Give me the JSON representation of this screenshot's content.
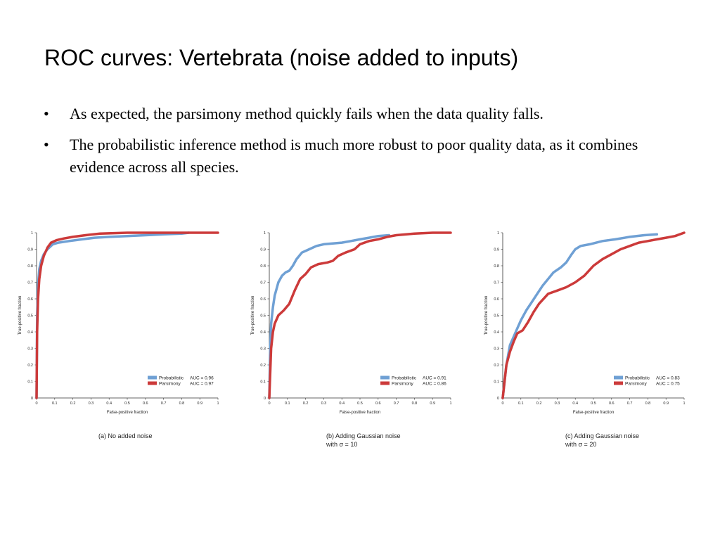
{
  "slide": {
    "title": "ROC curves: Vertebrata (noise added to inputs)",
    "bullets": [
      "As expected, the parsimony method quickly fails when the data quality falls.",
      "The probabilistic inference method is much more robust to poor quality data, as it combines evidence across all species."
    ],
    "bullet_mark": "•"
  },
  "colors": {
    "probabilistic": "#6fa0d4",
    "parsimony": "#cc3a3a"
  },
  "chart_data": [
    {
      "type": "line",
      "caption": "(a) No added noise",
      "xlabel": "False-positive fraction",
      "ylabel": "True-positive fraction",
      "xlim": [
        0,
        1
      ],
      "ylim": [
        0,
        1
      ],
      "xticks": [
        "0",
        "0.1",
        "0.2",
        "0.3",
        "0.4",
        "0.5",
        "0.6",
        "0.7",
        "0.8",
        "0.9",
        "1"
      ],
      "yticks": [
        "0",
        "0.1",
        "0.2",
        "0.3",
        "0.4",
        "0.5",
        "0.6",
        "0.7",
        "0.8",
        "0.9",
        "1"
      ],
      "grid": false,
      "legend_position": "bottom-right",
      "series": [
        {
          "name": "Probabilistic",
          "auc_label": "AUC = 0.96",
          "color": "#6fa0d4",
          "x": [
            0,
            0.003,
            0.008,
            0.015,
            0.025,
            0.04,
            0.06,
            0.09,
            0.12,
            0.18,
            0.25,
            0.32,
            0.4,
            0.5,
            0.6,
            0.7,
            0.8,
            0.84
          ],
          "y": [
            0,
            0.5,
            0.68,
            0.78,
            0.83,
            0.87,
            0.9,
            0.93,
            0.94,
            0.95,
            0.96,
            0.97,
            0.975,
            0.98,
            0.985,
            0.99,
            0.995,
            1.0
          ]
        },
        {
          "name": "Parsimony",
          "auc_label": "AUC = 0.97",
          "color": "#cc3a3a",
          "x": [
            0,
            0.003,
            0.008,
            0.015,
            0.025,
            0.04,
            0.06,
            0.08,
            0.11,
            0.15,
            0.2,
            0.27,
            0.35,
            0.5,
            0.7,
            0.85,
            1.0
          ],
          "y": [
            0,
            0.4,
            0.6,
            0.72,
            0.8,
            0.86,
            0.91,
            0.94,
            0.955,
            0.965,
            0.975,
            0.985,
            0.995,
            1.0,
            1.0,
            1.0,
            1.0
          ]
        }
      ]
    },
    {
      "type": "line",
      "caption": "(b) Adding Gaussian noise\nwith σ = 10",
      "xlabel": "False-positive fraction",
      "ylabel": "True-positive fraction",
      "xlim": [
        0,
        1
      ],
      "ylim": [
        0,
        1
      ],
      "xticks": [
        "0",
        "0.1",
        "0.2",
        "0.3",
        "0.4",
        "0.5",
        "0.6",
        "0.7",
        "0.8",
        "0.9",
        "1"
      ],
      "yticks": [
        "0",
        "0.1",
        "0.2",
        "0.3",
        "0.4",
        "0.5",
        "0.6",
        "0.7",
        "0.8",
        "0.9",
        "1"
      ],
      "grid": false,
      "legend_position": "bottom-right",
      "series": [
        {
          "name": "Probabilistic",
          "auc_label": "AUC = 0.91",
          "color": "#6fa0d4",
          "x": [
            0,
            0.005,
            0.01,
            0.02,
            0.03,
            0.05,
            0.07,
            0.09,
            0.11,
            0.13,
            0.15,
            0.18,
            0.22,
            0.26,
            0.3,
            0.35,
            0.4,
            0.45,
            0.5,
            0.55,
            0.6,
            0.66
          ],
          "y": [
            0,
            0.3,
            0.45,
            0.55,
            0.62,
            0.7,
            0.74,
            0.76,
            0.77,
            0.8,
            0.84,
            0.88,
            0.9,
            0.92,
            0.93,
            0.935,
            0.94,
            0.95,
            0.96,
            0.97,
            0.98,
            0.985
          ]
        },
        {
          "name": "Parsimony",
          "auc_label": "AUC = 0.86",
          "color": "#cc3a3a",
          "x": [
            0,
            0.005,
            0.01,
            0.02,
            0.03,
            0.05,
            0.08,
            0.11,
            0.14,
            0.17,
            0.2,
            0.23,
            0.27,
            0.32,
            0.35,
            0.38,
            0.42,
            0.47,
            0.5,
            0.55,
            0.6,
            0.65,
            0.7,
            0.8,
            0.9,
            1.0
          ],
          "y": [
            0,
            0.15,
            0.3,
            0.4,
            0.45,
            0.5,
            0.53,
            0.57,
            0.65,
            0.72,
            0.75,
            0.79,
            0.81,
            0.82,
            0.83,
            0.86,
            0.88,
            0.9,
            0.93,
            0.95,
            0.96,
            0.975,
            0.985,
            0.995,
            1.0,
            1.0
          ]
        }
      ]
    },
    {
      "type": "line",
      "caption": "(c) Adding Gaussian noise\nwith σ = 20",
      "xlabel": "False-positive fraction",
      "ylabel": "True-positive fraction",
      "xlim": [
        0,
        1
      ],
      "ylim": [
        0,
        1
      ],
      "xticks": [
        "0",
        "0.1",
        "0.2",
        "0.3",
        "0.4",
        "0.5",
        "0.6",
        "0.7",
        "0.8",
        "0.9",
        "1"
      ],
      "yticks": [
        "0",
        "0.1",
        "0.2",
        "0.3",
        "0.4",
        "0.5",
        "0.6",
        "0.7",
        "0.8",
        "0.9",
        "1"
      ],
      "grid": false,
      "legend_position": "bottom-right",
      "series": [
        {
          "name": "Probabilistic",
          "auc_label": "AUC = 0.83",
          "color": "#6fa0d4",
          "x": [
            0,
            0.01,
            0.02,
            0.04,
            0.06,
            0.08,
            0.1,
            0.13,
            0.16,
            0.19,
            0.22,
            0.25,
            0.28,
            0.32,
            0.35,
            0.38,
            0.4,
            0.43,
            0.48,
            0.55,
            0.62,
            0.7,
            0.78,
            0.85
          ],
          "y": [
            0,
            0.1,
            0.2,
            0.32,
            0.37,
            0.42,
            0.47,
            0.53,
            0.58,
            0.63,
            0.68,
            0.72,
            0.76,
            0.79,
            0.82,
            0.87,
            0.9,
            0.92,
            0.93,
            0.95,
            0.96,
            0.975,
            0.985,
            0.99
          ]
        },
        {
          "name": "Parsimony",
          "auc_label": "AUC = 0.75",
          "color": "#cc3a3a",
          "x": [
            0,
            0.01,
            0.02,
            0.04,
            0.06,
            0.08,
            0.11,
            0.14,
            0.17,
            0.2,
            0.25,
            0.3,
            0.35,
            0.4,
            0.45,
            0.5,
            0.55,
            0.6,
            0.65,
            0.7,
            0.75,
            0.8,
            0.85,
            0.9,
            0.95,
            1.0
          ],
          "y": [
            0,
            0.1,
            0.2,
            0.28,
            0.34,
            0.39,
            0.41,
            0.46,
            0.52,
            0.57,
            0.63,
            0.65,
            0.67,
            0.7,
            0.74,
            0.8,
            0.84,
            0.87,
            0.9,
            0.92,
            0.94,
            0.95,
            0.96,
            0.97,
            0.98,
            1.0
          ]
        }
      ]
    }
  ]
}
